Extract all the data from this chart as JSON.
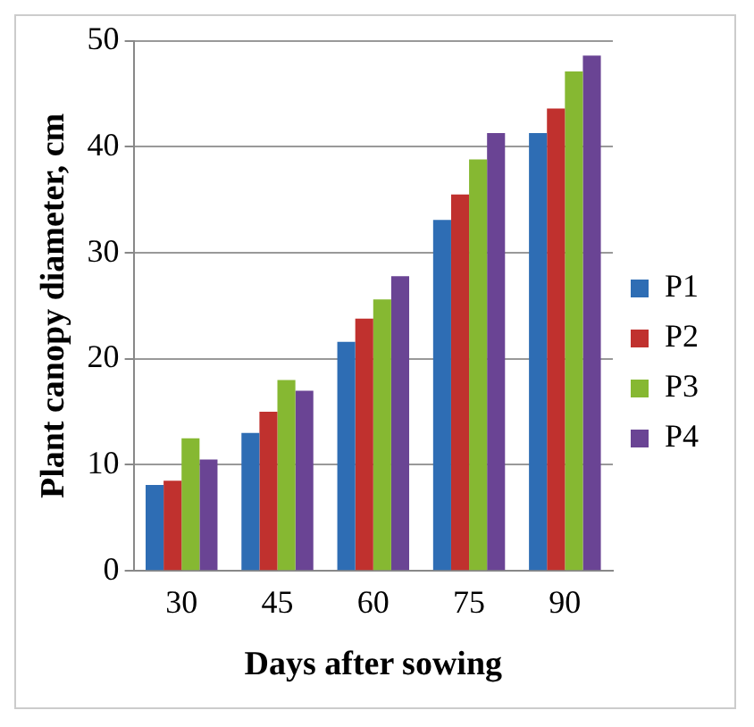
{
  "chart_data": {
    "type": "bar",
    "xlabel": "Days after sowing",
    "ylabel": "Plant canopy diameter, cm",
    "categories": [
      "30",
      "45",
      "60",
      "75",
      "90"
    ],
    "series": [
      {
        "name": "P1",
        "color": "#2e6db4",
        "values": [
          8.1,
          13.0,
          21.6,
          33.1,
          41.3
        ]
      },
      {
        "name": "P2",
        "color": "#c0312e",
        "values": [
          8.5,
          15.0,
          23.8,
          35.5,
          43.6
        ]
      },
      {
        "name": "P3",
        "color": "#86b832",
        "values": [
          12.5,
          18.0,
          25.6,
          38.8,
          47.1
        ]
      },
      {
        "name": "P4",
        "color": "#6a4494",
        "values": [
          10.5,
          17.0,
          27.8,
          41.3,
          48.6
        ]
      }
    ],
    "ylim": [
      0,
      50
    ],
    "yticks": [
      0,
      10,
      20,
      30,
      40,
      50
    ],
    "grid": "y",
    "legend": "right"
  }
}
